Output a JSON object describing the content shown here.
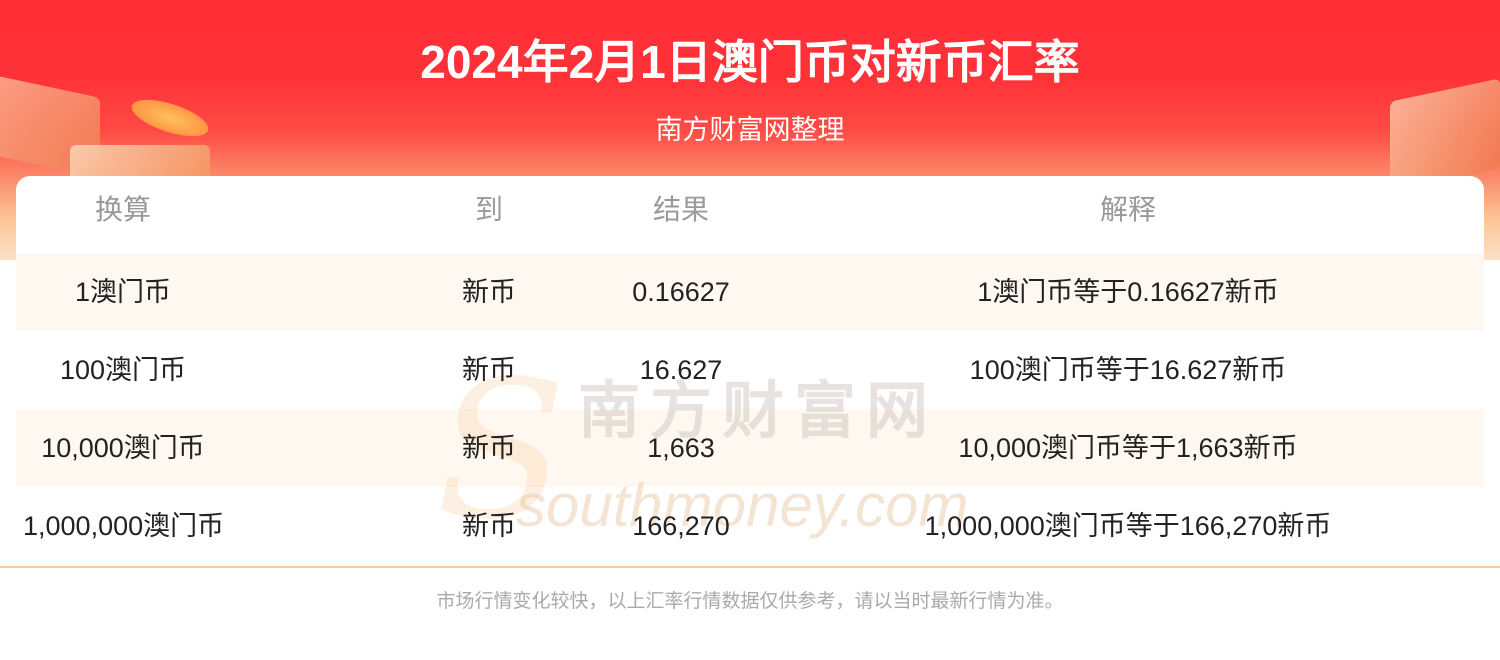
{
  "header": {
    "title": "2024年2月1日澳门币对新币汇率",
    "subtitle": "南方财富网整理"
  },
  "table": {
    "columns": [
      "换算",
      "到",
      "结果",
      "解释"
    ],
    "rows": [
      [
        "1澳门币",
        "新币",
        "0.16627",
        "1澳门币等于0.16627新币"
      ],
      [
        "100澳门币",
        "新币",
        "16.627",
        "100澳门币等于16.627新币"
      ],
      [
        "10,000澳门币",
        "新币",
        "1,663",
        "10,000澳门币等于1,663新币"
      ],
      [
        "1,000,000澳门币",
        "新币",
        "166,270",
        "1,000,000澳门币等于166,270新币"
      ]
    ]
  },
  "watermark": {
    "cn": "南方财富网",
    "en": "southmoney.com"
  },
  "footer": {
    "note": "市场行情变化较快，以上汇率行情数据仅供参考，请以当时最新行情为准。"
  },
  "colors": {
    "banner_red": "#ff2d37",
    "stripe": "#fff8f1",
    "divider": "#f9c99b"
  }
}
